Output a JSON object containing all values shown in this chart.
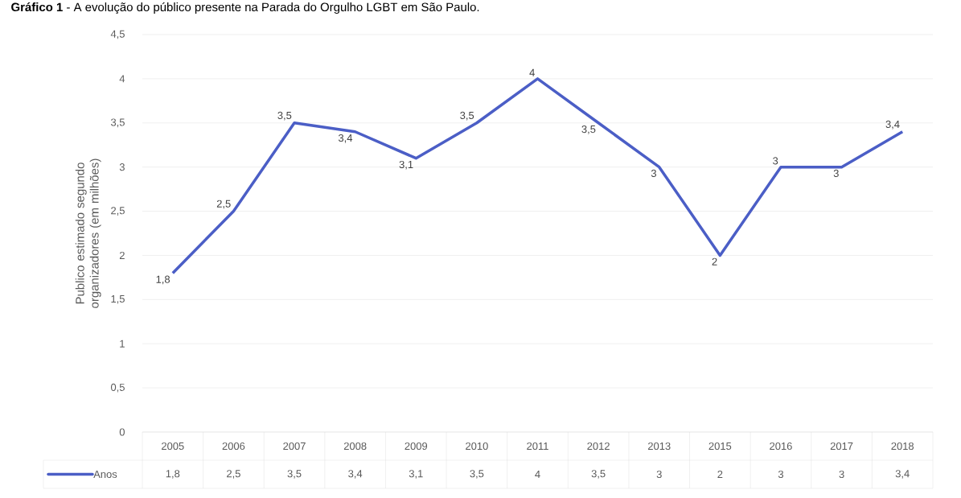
{
  "chart_data": {
    "type": "line",
    "title": "**Gráfico 1** - A evolução do público presente na Parada do Orgulho LGBT em São Paulo.",
    "ylabel": "Publico estimado segundo organizadores (em milhões)",
    "categories": [
      "2005",
      "2006",
      "2007",
      "2008",
      "2009",
      "2010",
      "2011",
      "2012",
      "2013",
      "2015",
      "2016",
      "2017",
      "2018"
    ],
    "series": [
      {
        "name": "Anos",
        "color": "#4b5ec6",
        "values": [
          1.8,
          2.5,
          3.5,
          3.4,
          3.1,
          3.5,
          4,
          3.5,
          3,
          2,
          3,
          3,
          3.4
        ],
        "value_labels": [
          "1,8",
          "2,5",
          "3,5",
          "3,4",
          "3,1",
          "3,5",
          "4",
          "3,5",
          "3",
          "2",
          "3",
          "3",
          "3,4"
        ]
      }
    ],
    "ylim": [
      0,
      4.5
    ],
    "yticks": [
      0,
      {
        "value": 0.5,
        "label": "0,5"
      },
      1,
      {
        "value": 1.5,
        "label": "1,5"
      },
      2,
      {
        "value": 2.5,
        "label": "2,5"
      },
      3,
      {
        "value": 3.5,
        "label": "3,5"
      },
      4,
      {
        "value": 4.5,
        "label": "4,5"
      }
    ],
    "grid": "y",
    "legend": "bottom",
    "marker": "none",
    "line_style": "solid"
  }
}
